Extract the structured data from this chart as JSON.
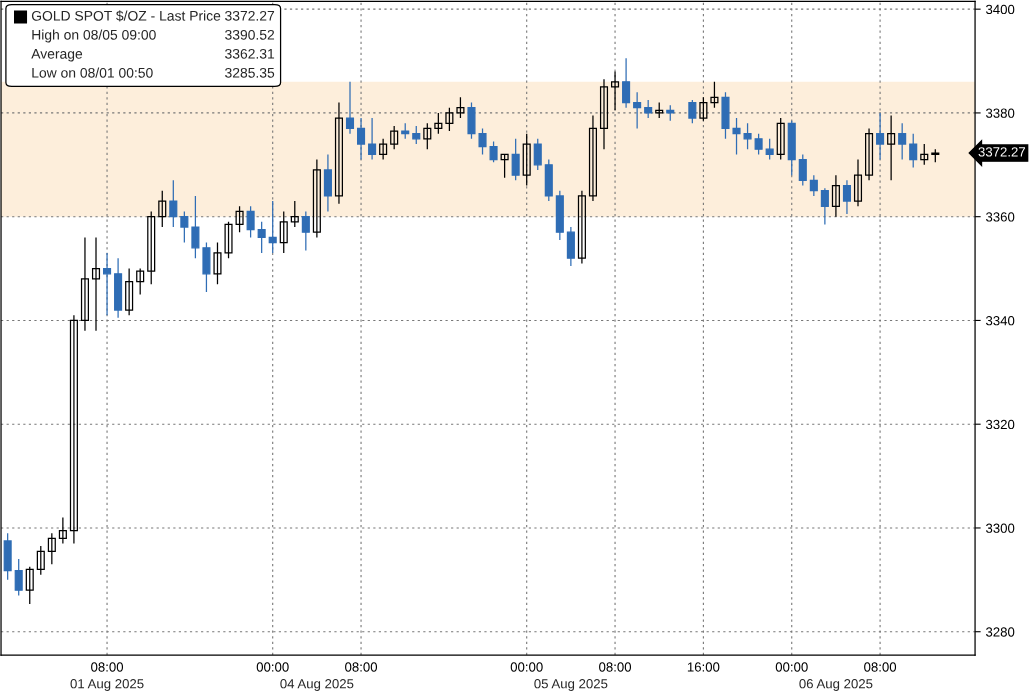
{
  "chart_data": {
    "type": "candlestick",
    "categories": [
      null,
      null,
      null,
      null,
      null,
      null,
      null,
      null,
      null,
      "08:00",
      null,
      null,
      null,
      null,
      null,
      null,
      null,
      null,
      null,
      null,
      null,
      null,
      null,
      null,
      "00:00",
      null,
      null,
      null,
      null,
      null,
      null,
      null,
      "08:00",
      null,
      null,
      null,
      null,
      null,
      null,
      null,
      null,
      null,
      null,
      null,
      null,
      null,
      null,
      "00:00",
      null,
      null,
      null,
      null,
      null,
      null,
      null,
      "08:00",
      null,
      null,
      null,
      null,
      null,
      null,
      null,
      "16:00",
      null,
      null,
      null,
      null,
      null,
      null,
      null,
      "00:00",
      null,
      null,
      null,
      null,
      null,
      null,
      null,
      "08:00",
      null,
      null,
      null,
      null,
      null
    ],
    "series": [
      {
        "name": "GOLD SPOT $/OZ - Last Price",
        "colors": [
          "#2f6db5",
          "#2f6db5",
          "#000000",
          "#000000",
          "#000000",
          "#000000",
          "#000000",
          "#000000",
          "#000000",
          "#2f6db5",
          "#2f6db5",
          "#000000",
          "#000000",
          "#000000",
          "#000000",
          "#2f6db5",
          "#2f6db5",
          "#2f6db5",
          "#2f6db5",
          "#000000",
          "#000000",
          "#000000",
          "#2f6db5",
          "#2f6db5",
          "#2f6db5",
          "#000000",
          "#000000",
          "#2f6db5",
          "#000000",
          "#2f6db5",
          "#000000",
          "#2f6db5",
          "#2f6db5",
          "#2f6db5",
          "#000000",
          "#000000",
          "#2f6db5",
          "#2f6db5",
          "#000000",
          "#000000",
          "#000000",
          "#000000",
          "#2f6db5",
          "#2f6db5",
          "#2f6db5",
          "#000000",
          "#2f6db5",
          "#000000",
          "#2f6db5",
          "#2f6db5",
          "#2f6db5",
          "#2f6db5",
          "#000000",
          "#000000",
          "#000000",
          "#000000",
          "#2f6db5",
          "#2f6db5",
          "#2f6db5",
          "#000000",
          "#2f6db5",
          null,
          "#2f6db5",
          "#000000",
          "#000000",
          "#2f6db5",
          "#2f6db5",
          "#2f6db5",
          "#2f6db5",
          "#2f6db5",
          "#000000",
          "#2f6db5",
          "#2f6db5",
          "#2f6db5",
          "#2f6db5",
          "#000000",
          "#2f6db5",
          "#000000",
          "#000000",
          "#2f6db5",
          "#000000",
          "#2f6db5",
          "#2f6db5",
          "#000000",
          "#000000"
        ],
        "ohlc": [
          [
            3297.5,
            3299,
            3290,
            3291.8
          ],
          [
            3291.8,
            3294,
            3287,
            3288
          ],
          [
            3288,
            3292.5,
            3285.35,
            3292
          ],
          [
            3292,
            3296.5,
            3291,
            3295.5
          ],
          [
            3295.5,
            3299,
            3293,
            3298
          ],
          [
            3298,
            3302,
            3297,
            3299.5
          ],
          [
            3299.5,
            3341,
            3297,
            3340
          ],
          [
            3340,
            3356,
            3338,
            3348
          ],
          [
            3348,
            3356,
            3338,
            3350
          ],
          [
            3350,
            3353,
            3341,
            3349
          ],
          [
            3349,
            3352,
            3340.5,
            3342
          ],
          [
            3342,
            3350,
            3341,
            3347.5
          ],
          [
            3347.5,
            3350,
            3345,
            3349.5
          ],
          [
            3349.5,
            3361,
            3347,
            3360
          ],
          [
            3360,
            3365,
            3358,
            3363
          ],
          [
            3363,
            3367,
            3358,
            3360
          ],
          [
            3360,
            3361,
            3355,
            3358
          ],
          [
            3358,
            3364,
            3352,
            3354
          ],
          [
            3354,
            3355,
            3345.5,
            3349
          ],
          [
            3349,
            3355,
            3347,
            3353
          ],
          [
            3353,
            3359,
            3352,
            3358.5
          ],
          [
            3358.5,
            3362,
            3357,
            3361
          ],
          [
            3361,
            3362,
            3356,
            3357.5
          ],
          [
            3357.5,
            3359,
            3353,
            3356
          ],
          [
            3356,
            3363,
            3353,
            3355
          ],
          [
            3355,
            3361,
            3353,
            3359
          ],
          [
            3359,
            3363,
            3358,
            3360
          ],
          [
            3360,
            3361,
            3353.5,
            3357
          ],
          [
            3357,
            3371,
            3356,
            3369
          ],
          [
            3369,
            3372,
            3361,
            3364
          ],
          [
            3364,
            3382,
            3362.5,
            3379
          ],
          [
            3379,
            3386,
            3376,
            3377
          ],
          [
            3377,
            3379,
            3371,
            3374
          ],
          [
            3374,
            3379,
            3371,
            3372
          ],
          [
            3372,
            3375,
            3371,
            3374
          ],
          [
            3374,
            3377.5,
            3373,
            3376.5
          ],
          [
            3376.5,
            3378,
            3375,
            3376
          ],
          [
            3376,
            3377.5,
            3374,
            3375
          ],
          [
            3375,
            3378,
            3373,
            3377
          ],
          [
            3377,
            3380,
            3376,
            3378
          ],
          [
            3378,
            3381,
            3376.5,
            3380
          ],
          [
            3380,
            3383,
            3379,
            3381
          ],
          [
            3381,
            3382,
            3375,
            3376
          ],
          [
            3376,
            3377,
            3372,
            3373.5
          ],
          [
            3373.5,
            3374.5,
            3370.5,
            3371
          ],
          [
            3371,
            3372,
            3367.5,
            3372
          ],
          [
            3372,
            3375,
            3367,
            3368
          ],
          [
            3368,
            3376,
            3366,
            3374
          ],
          [
            3374,
            3375,
            3369,
            3370
          ],
          [
            3370,
            3371,
            3363,
            3364
          ],
          [
            3364,
            3365,
            3355.5,
            3357
          ],
          [
            3357,
            3358,
            3350.5,
            3352
          ],
          [
            3352,
            3365,
            3351,
            3364
          ],
          [
            3364,
            3379.5,
            3363,
            3377
          ],
          [
            3377,
            3386.5,
            3373,
            3385
          ],
          [
            3385,
            3388,
            3380.5,
            3386
          ],
          [
            3386,
            3390.52,
            3381,
            3382
          ],
          [
            3382,
            3384,
            3377,
            3381
          ],
          [
            3381,
            3382.5,
            3379,
            3380
          ],
          [
            3380,
            3382,
            3379,
            3380.5
          ],
          [
            3380.5,
            3381.5,
            3378.5,
            3380
          ],
          null,
          [
            3382,
            3382.5,
            3378,
            3379
          ],
          [
            3379,
            3383,
            3378.5,
            3382
          ],
          [
            3382,
            3386,
            3381,
            3383
          ],
          [
            3383,
            3384,
            3375,
            3377
          ],
          [
            3377,
            3379,
            3372,
            3376
          ],
          [
            3376,
            3378,
            3373,
            3375
          ],
          [
            3375,
            3376,
            3372,
            3373
          ],
          [
            3373,
            3375,
            3371,
            3372
          ],
          [
            3372,
            3379,
            3371,
            3378
          ],
          [
            3378,
            3378.5,
            3368,
            3371
          ],
          [
            3371,
            3372,
            3366,
            3367
          ],
          [
            3367,
            3368,
            3364,
            3365
          ],
          [
            3365,
            3365.5,
            3358.5,
            3362
          ],
          [
            3362,
            3368,
            3360,
            3366
          ],
          [
            3366,
            3367,
            3360.5,
            3363
          ],
          [
            3363,
            3371,
            3362,
            3368
          ],
          [
            3368,
            3377,
            3367,
            3376
          ],
          [
            3376,
            3380,
            3371,
            3374
          ],
          [
            3374,
            3379.5,
            3367,
            3376
          ],
          [
            3376,
            3378,
            3371,
            3374
          ],
          [
            3374,
            3376,
            3369.5,
            3371
          ],
          [
            3371,
            3374,
            3370,
            3372
          ],
          [
            3372,
            3373,
            3370.5,
            3372.27
          ]
        ]
      }
    ],
    "ylim": [
      3275.5,
      3401.5
    ],
    "yticks": [
      3280,
      3300,
      3320,
      3340,
      3360,
      3380,
      3400
    ],
    "grid": true,
    "legend": "top left",
    "bands": [
      {
        "axis": "y",
        "from": 3360,
        "to": 3386,
        "color": "#fdeedb"
      }
    ],
    "annotations": [
      "3372.27",
      "High on 08/05 09:00",
      "3390.52",
      "Average",
      "3362.31",
      "Low on 08/01 00:50",
      "3285.35",
      "01 Aug 2025",
      "04 Aug 2025",
      "05 Aug 2025",
      "06 Aug 2025",
      "3372.27"
    ]
  }
}
